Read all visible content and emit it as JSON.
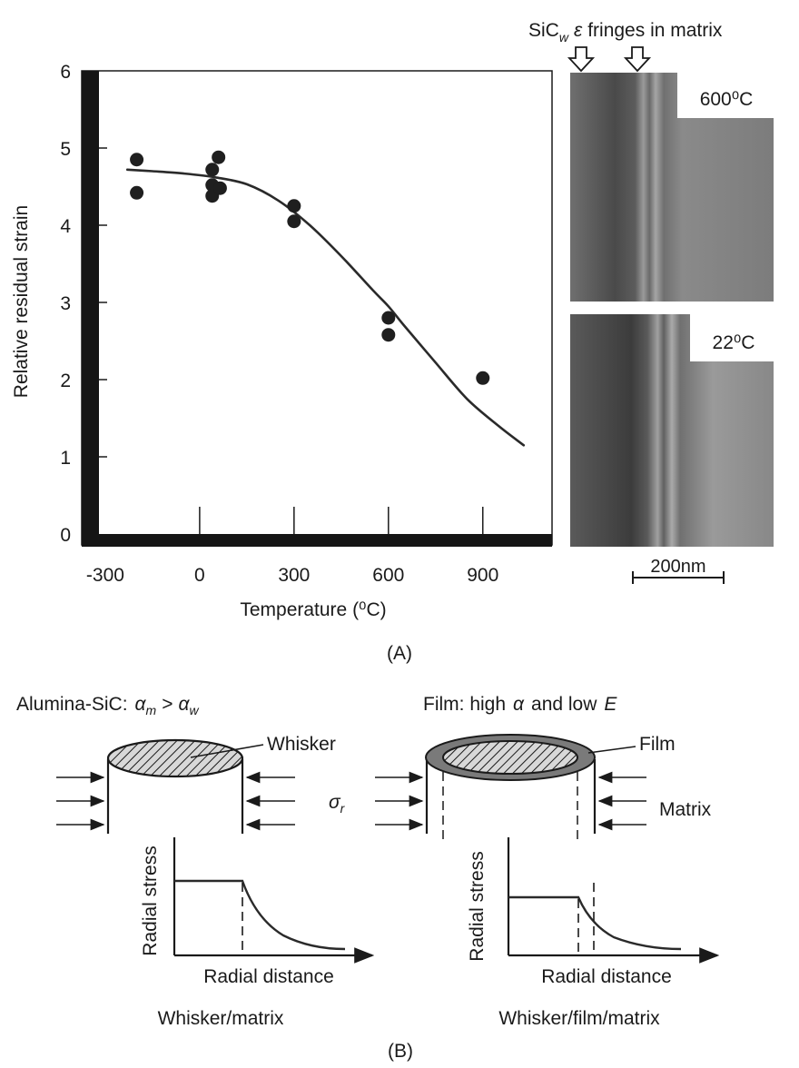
{
  "panel_a": {
    "label": "(A)",
    "chart_data": {
      "type": "scatter",
      "xlabel": "Temperature (⁰C)",
      "ylabel": "Relative residual strain",
      "xlim": [
        -320,
        1120
      ],
      "ylim": [
        0,
        6
      ],
      "x_ticks": [
        -300,
        0,
        300,
        600,
        900
      ],
      "x_tick_labels": [
        "-300",
        "0",
        "300",
        "600",
        "900"
      ],
      "y_ticks": [
        0,
        1,
        2,
        3,
        4,
        5,
        6
      ],
      "y_tick_labels": [
        "0",
        "1",
        "2",
        "3",
        "4",
        "5",
        "6"
      ],
      "grid": false,
      "series": [
        {
          "kind": "points",
          "x": [
            -200,
            -200,
            40,
            40,
            40,
            60,
            65,
            300,
            300,
            600,
            600,
            900
          ],
          "y": [
            4.85,
            4.42,
            4.72,
            4.52,
            4.38,
            4.88,
            4.48,
            4.25,
            4.05,
            2.8,
            2.58,
            2.02
          ]
        },
        {
          "kind": "fit-curve",
          "x": [
            -230,
            -150,
            -50,
            50,
            150,
            250,
            350,
            450,
            550,
            600,
            650,
            750,
            850,
            950,
            1030
          ],
          "y": [
            4.72,
            4.7,
            4.67,
            4.62,
            4.53,
            4.32,
            4.0,
            3.6,
            3.16,
            2.95,
            2.7,
            2.22,
            1.75,
            1.4,
            1.15
          ]
        }
      ]
    },
    "micrographs": {
      "header_sic_w": "SiC",
      "header_subscript": "w",
      "header_epsilon": "ε",
      "header_rest": "fringes in matrix",
      "top_label": "600⁰C",
      "bottom_label": "22⁰C",
      "scale_bar": "200nm"
    }
  },
  "panel_b": {
    "label": "(B)",
    "left": {
      "title_prefix": "Alumina-SiC:",
      "alpha": "α",
      "sub_m": "m",
      "gt": ">",
      "sub_w": "w",
      "whisker_label": "Whisker",
      "sigma": "σ",
      "sigma_sub": "r",
      "ylabel": "Radial stress",
      "xlabel": "Radial distance",
      "caption": "Whisker/matrix"
    },
    "right": {
      "title": "Film: high",
      "alpha": "α",
      "and_low": "and low",
      "e_symbol": "E",
      "film_label": "Film",
      "matrix_label": "Matrix",
      "ylabel": "Radial stress",
      "xlabel": "Radial distance",
      "caption": "Whisker/film/matrix"
    }
  },
  "colors": {
    "ink": "#1a1a1a",
    "frame": "#151515",
    "marker": "#1f1f1f",
    "curve": "#2a2a2a",
    "micrograph_dark": "#3c3c3c",
    "micrograph_mid": "#6e6e6e",
    "micrograph_light": "#8c8c8c"
  }
}
